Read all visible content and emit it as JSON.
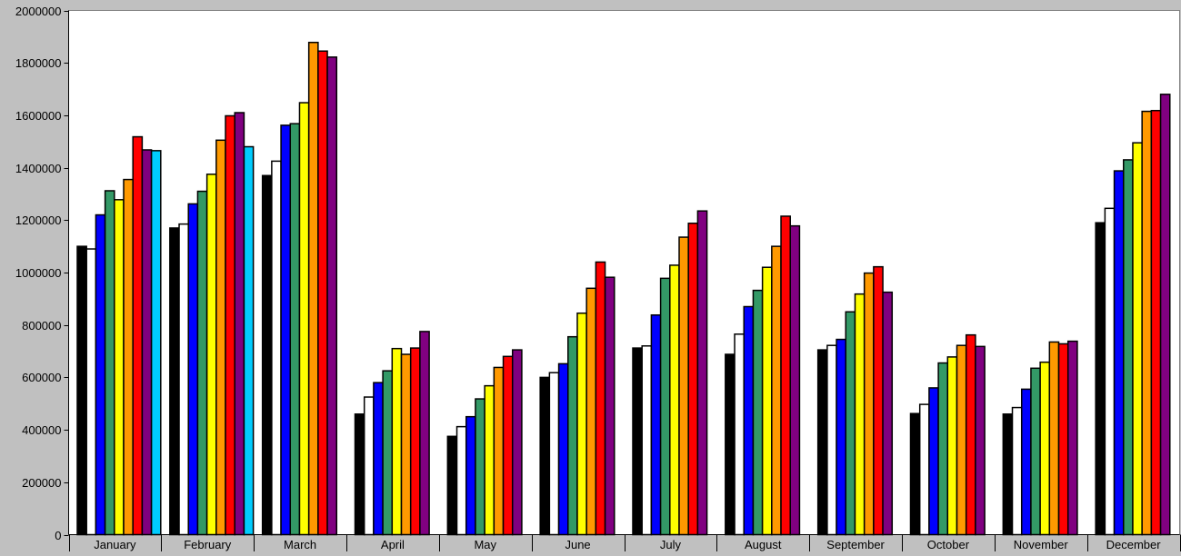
{
  "chart_data": {
    "type": "bar",
    "title": "",
    "xlabel": "",
    "ylabel": "",
    "ylim": [
      0,
      2000000
    ],
    "yticks": [
      0,
      200000,
      400000,
      600000,
      800000,
      1000000,
      1200000,
      1400000,
      1600000,
      1800000,
      2000000
    ],
    "grid": false,
    "legend": "none",
    "colors": {
      "background": "#c0c0c0",
      "plot_area": "#ffffff",
      "bar_outline": "#000000"
    },
    "categories": [
      "January",
      "February",
      "March",
      "April",
      "May",
      "June",
      "July",
      "August",
      "September",
      "October",
      "November",
      "December"
    ],
    "series": [
      {
        "color": "#000000",
        "values": [
          1100000,
          1170000,
          1370000,
          460000,
          375000,
          600000,
          712000,
          688000,
          705000,
          462000,
          460000,
          1190000
        ]
      },
      {
        "color": "#ffffff",
        "values": [
          1090000,
          1185000,
          1425000,
          525000,
          412000,
          618000,
          720000,
          765000,
          722000,
          497000,
          485000,
          1245000
        ]
      },
      {
        "color": "#0000ff",
        "values": [
          1220000,
          1262000,
          1562000,
          580000,
          450000,
          652000,
          838000,
          870000,
          745000,
          560000,
          555000,
          1388000
        ]
      },
      {
        "color": "#339966",
        "values": [
          1312000,
          1310000,
          1568000,
          625000,
          518000,
          755000,
          978000,
          932000,
          850000,
          655000,
          635000,
          1430000
        ]
      },
      {
        "color": "#ffff00",
        "values": [
          1278000,
          1375000,
          1648000,
          710000,
          568000,
          845000,
          1028000,
          1020000,
          918000,
          678000,
          658000,
          1495000
        ]
      },
      {
        "color": "#ff9900",
        "values": [
          1355000,
          1505000,
          1878000,
          688000,
          638000,
          940000,
          1135000,
          1100000,
          998000,
          722000,
          735000,
          1615000
        ]
      },
      {
        "color": "#ff0000",
        "values": [
          1518000,
          1598000,
          1845000,
          712000,
          680000,
          1040000,
          1188000,
          1215000,
          1022000,
          762000,
          728000,
          1618000
        ]
      },
      {
        "color": "#800080",
        "values": [
          1468000,
          1610000,
          1822000,
          775000,
          705000,
          982000,
          1235000,
          1178000,
          925000,
          718000,
          738000,
          1680000
        ]
      },
      {
        "color": "#00ccff",
        "values": [
          1465000,
          1480000,
          null,
          null,
          null,
          null,
          null,
          null,
          null,
          null,
          null,
          null
        ]
      }
    ]
  }
}
